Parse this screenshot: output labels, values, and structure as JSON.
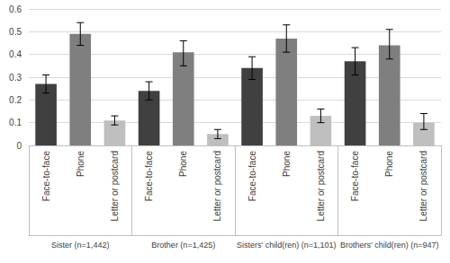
{
  "chart_data": {
    "type": "bar",
    "categories": [
      "Sister (n=1,442)",
      "Brother (n=1,425)",
      "Sisters' child(ren) (n=1,101)",
      "Brothers' child(ren) (n=947)"
    ],
    "series": [
      {
        "name": "Face-to-face",
        "color": "#404040",
        "values": [
          0.27,
          0.24,
          0.34,
          0.37
        ],
        "error_low": [
          0.23,
          0.2,
          0.29,
          0.31
        ],
        "error_high": [
          0.31,
          0.28,
          0.39,
          0.43
        ]
      },
      {
        "name": "Phone",
        "color": "#7f7f7f",
        "values": [
          0.49,
          0.41,
          0.47,
          0.44
        ],
        "error_low": [
          0.44,
          0.35,
          0.41,
          0.38
        ],
        "error_high": [
          0.54,
          0.46,
          0.53,
          0.51
        ]
      },
      {
        "name": "Letter or postcard",
        "color": "#bfbfbf",
        "values": [
          0.11,
          0.05,
          0.13,
          0.1
        ],
        "error_low": [
          0.09,
          0.03,
          0.1,
          0.07
        ],
        "error_high": [
          0.13,
          0.07,
          0.16,
          0.14
        ]
      }
    ],
    "ylim": [
      0,
      0.6
    ],
    "yticks": [
      0,
      0.1,
      0.2,
      0.3,
      0.4,
      0.5,
      0.6
    ],
    "grid": true
  }
}
